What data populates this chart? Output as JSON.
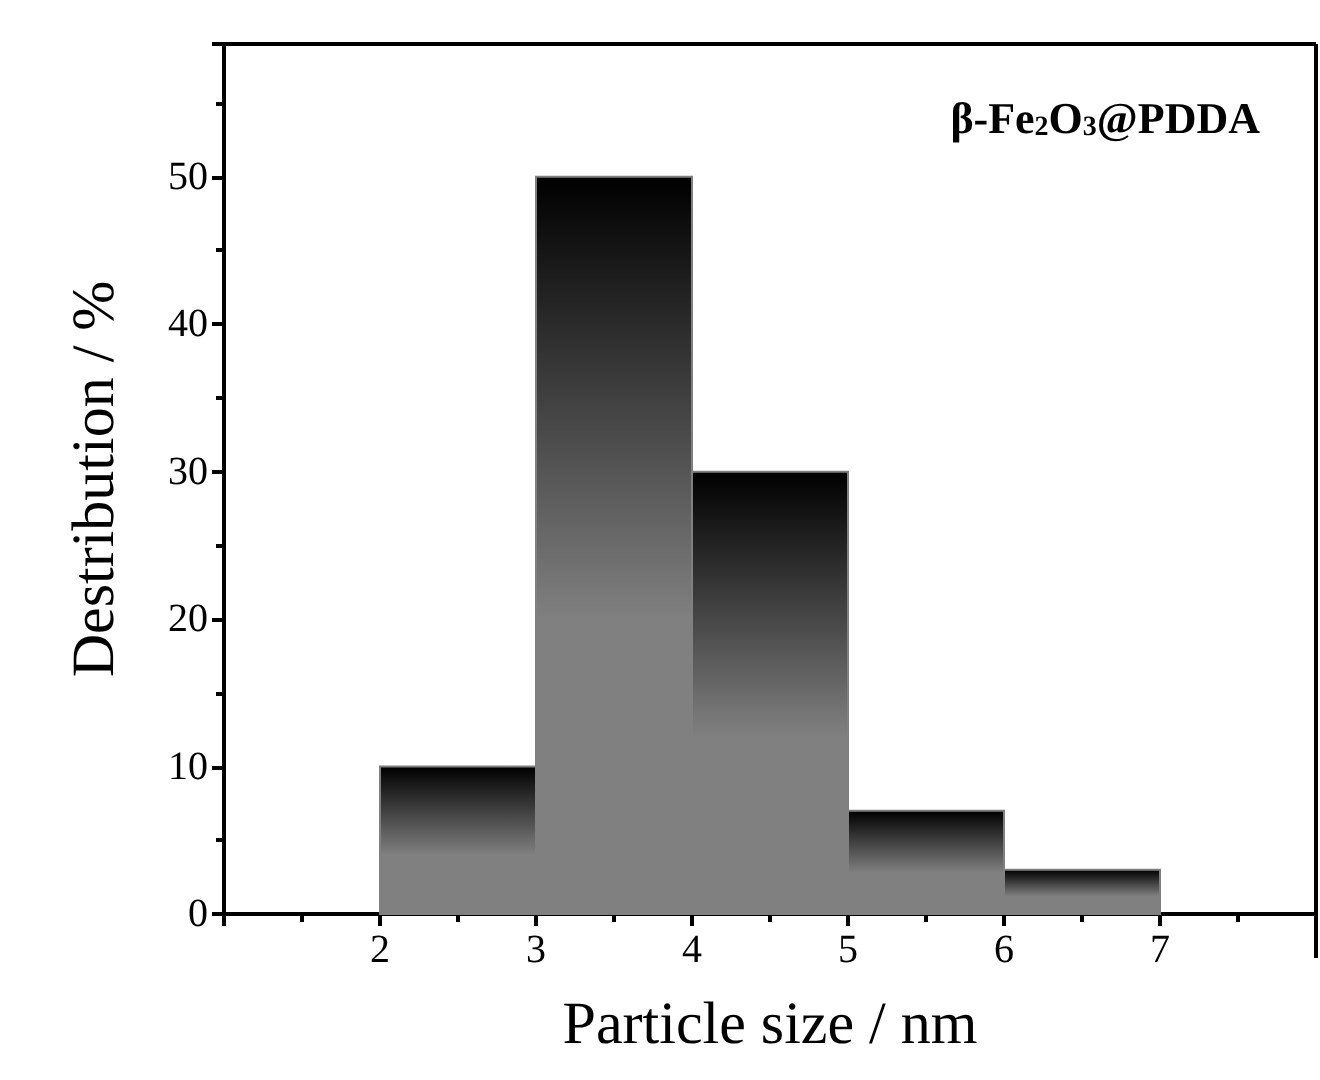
{
  "chart_data": {
    "type": "histogram",
    "xlabel": "Particle size / nm",
    "ylabel": "Destribution / %",
    "annotations": [
      "β-Fe$_{2}$O$_{3}$@PDDA"
    ],
    "bins": [
      2,
      3,
      4,
      5,
      6,
      7
    ],
    "values": [
      10,
      50,
      30,
      7,
      3
    ],
    "color": "#808080",
    "xlim": [
      1,
      8
    ],
    "xticks": [
      2,
      3,
      4,
      5,
      6,
      7
    ],
    "ylim": [
      0,
      59
    ],
    "yticks": [
      0,
      10,
      20,
      30,
      40,
      50
    ],
    "grid": false
  }
}
